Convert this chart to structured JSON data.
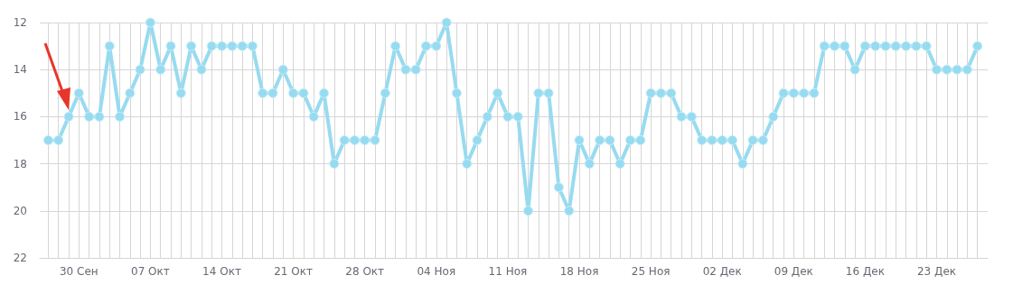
{
  "chart_data": {
    "type": "line",
    "x": [
      "--09-27",
      "--09-28",
      "--09-29",
      "--09-30",
      "--10-01",
      "--10-02",
      "--10-03",
      "--10-04",
      "--10-05",
      "--10-06",
      "--10-07",
      "--10-08",
      "--10-09",
      "--10-10",
      "--10-11",
      "--10-12",
      "--10-13",
      "--10-14",
      "--10-15",
      "--10-16",
      "--10-17",
      "--10-18",
      "--10-19",
      "--10-20",
      "--10-21",
      "--10-22",
      "--10-23",
      "--10-24",
      "--10-25",
      "--10-26",
      "--10-27",
      "--10-28",
      "--10-29",
      "--10-30",
      "--10-31",
      "--11-01",
      "--11-02",
      "--11-03",
      "--11-04",
      "--11-05",
      "--11-06",
      "--11-07",
      "--11-08",
      "--11-09",
      "--11-10",
      "--11-11",
      "--11-12",
      "--11-13",
      "--11-14",
      "--11-15",
      "--11-16",
      "--11-17",
      "--11-18",
      "--11-19",
      "--11-20",
      "--11-21",
      "--11-22",
      "--11-23",
      "--11-24",
      "--11-25",
      "--11-26",
      "--11-27",
      "--11-28",
      "--11-29",
      "--11-30",
      "--12-01",
      "--12-02",
      "--12-03",
      "--12-04",
      "--12-05",
      "--12-06",
      "--12-07",
      "--12-08",
      "--12-09",
      "--12-10",
      "--12-11",
      "--12-12",
      "--12-13",
      "--12-14",
      "--12-15",
      "--12-16",
      "--12-17",
      "--12-18",
      "--12-19",
      "--12-20",
      "--12-21",
      "--12-22",
      "--12-23",
      "--12-24",
      "--12-25",
      "--12-26",
      "--12-27"
    ],
    "series": [
      {
        "color": "#97dbf0",
        "values": [
          17,
          17,
          16,
          15,
          16,
          16,
          13,
          16,
          15,
          14,
          12,
          14,
          13,
          15,
          13,
          14,
          13,
          13,
          13,
          13,
          13,
          15,
          15,
          14,
          15,
          15,
          16,
          15,
          18,
          17,
          17,
          17,
          17,
          15,
          13,
          14,
          14,
          13,
          13,
          12,
          15,
          18,
          17,
          16,
          15,
          16,
          16,
          20,
          15,
          15,
          19,
          20,
          17,
          18,
          17,
          17,
          18,
          17,
          17,
          15,
          15,
          15,
          16,
          16,
          17,
          17,
          17,
          17,
          18,
          17,
          17,
          16,
          15,
          15,
          15,
          15,
          13,
          13,
          13,
          14,
          13,
          13,
          13,
          13,
          13,
          13,
          13,
          14,
          14,
          14,
          14,
          13
        ]
      }
    ],
    "xlim": [
      "--09-26T04:00",
      "--12-28"
    ],
    "xticks": [
      {
        "value": "--09-27",
        "label": null
      },
      {
        "value": "--09-28",
        "label": null
      },
      {
        "value": "--09-29",
        "label": null
      },
      {
        "value": "--09-30",
        "label": "30 Сен"
      },
      {
        "value": "--10-01",
        "label": null
      },
      {
        "value": "--10-02",
        "label": null
      },
      {
        "value": "--10-03",
        "label": null
      },
      {
        "value": "--10-04",
        "label": null
      },
      {
        "value": "--10-05",
        "label": null
      },
      {
        "value": "--10-06",
        "label": null
      },
      {
        "value": "--10-07",
        "label": "07 Окт"
      },
      {
        "value": "--10-08",
        "label": null
      },
      {
        "value": "--10-09",
        "label": null
      },
      {
        "value": "--10-10",
        "label": null
      },
      {
        "value": "--10-11",
        "label": null
      },
      {
        "value": "--10-12",
        "label": null
      },
      {
        "value": "--10-13",
        "label": null
      },
      {
        "value": "--10-14",
        "label": "14 Окт"
      },
      {
        "value": "--10-15",
        "label": null
      },
      {
        "value": "--10-16",
        "label": null
      },
      {
        "value": "--10-17",
        "label": null
      },
      {
        "value": "--10-18",
        "label": null
      },
      {
        "value": "--10-19",
        "label": null
      },
      {
        "value": "--10-20",
        "label": null
      },
      {
        "value": "--10-21",
        "label": "21 Окт"
      },
      {
        "value": "--10-22",
        "label": null
      },
      {
        "value": "--10-23",
        "label": null
      },
      {
        "value": "--10-24",
        "label": null
      },
      {
        "value": "--10-25",
        "label": null
      },
      {
        "value": "--10-26",
        "label": null
      },
      {
        "value": "--10-27",
        "label": null
      },
      {
        "value": "--10-28",
        "label": "28 Окт"
      },
      {
        "value": "--10-29",
        "label": null
      },
      {
        "value": "--10-30",
        "label": null
      },
      {
        "value": "--10-31",
        "label": null
      },
      {
        "value": "--11-01",
        "label": null
      },
      {
        "value": "--11-02",
        "label": null
      },
      {
        "value": "--11-03",
        "label": null
      },
      {
        "value": "--11-04",
        "label": "04 Ноя"
      },
      {
        "value": "--11-05",
        "label": null
      },
      {
        "value": "--11-06",
        "label": null
      },
      {
        "value": "--11-07",
        "label": null
      },
      {
        "value": "--11-08",
        "label": null
      },
      {
        "value": "--11-09",
        "label": null
      },
      {
        "value": "--11-10",
        "label": null
      },
      {
        "value": "--11-11",
        "label": "11 Ноя"
      },
      {
        "value": "--11-12",
        "label": null
      },
      {
        "value": "--11-13",
        "label": null
      },
      {
        "value": "--11-14",
        "label": null
      },
      {
        "value": "--11-15",
        "label": null
      },
      {
        "value": "--11-16",
        "label": null
      },
      {
        "value": "--11-17",
        "label": null
      },
      {
        "value": "--11-18",
        "label": "18 Ноя"
      },
      {
        "value": "--11-19",
        "label": null
      },
      {
        "value": "--11-20",
        "label": null
      },
      {
        "value": "--11-21",
        "label": null
      },
      {
        "value": "--11-22",
        "label": null
      },
      {
        "value": "--11-23",
        "label": null
      },
      {
        "value": "--11-24",
        "label": null
      },
      {
        "value": "--11-25",
        "label": "25 Ноя"
      },
      {
        "value": "--11-26",
        "label": null
      },
      {
        "value": "--11-27",
        "label": null
      },
      {
        "value": "--11-28",
        "label": null
      },
      {
        "value": "--11-29",
        "label": null
      },
      {
        "value": "--11-30",
        "label": null
      },
      {
        "value": "--12-01",
        "label": null
      },
      {
        "value": "--12-02",
        "label": "02 Дек"
      },
      {
        "value": "--12-03",
        "label": null
      },
      {
        "value": "--12-04",
        "label": null
      },
      {
        "value": "--12-05",
        "label": null
      },
      {
        "value": "--12-06",
        "label": null
      },
      {
        "value": "--12-07",
        "label": null
      },
      {
        "value": "--12-08",
        "label": null
      },
      {
        "value": "--12-09",
        "label": "09 Дек"
      },
      {
        "value": "--12-10",
        "label": null
      },
      {
        "value": "--12-11",
        "label": null
      },
      {
        "value": "--12-12",
        "label": null
      },
      {
        "value": "--12-13",
        "label": null
      },
      {
        "value": "--12-14",
        "label": null
      },
      {
        "value": "--12-15",
        "label": null
      },
      {
        "value": "--12-16",
        "label": "16 Дек"
      },
      {
        "value": "--12-17",
        "label": null
      },
      {
        "value": "--12-18",
        "label": null
      },
      {
        "value": "--12-19",
        "label": null
      },
      {
        "value": "--12-20",
        "label": null
      },
      {
        "value": "--12-21",
        "label": null
      },
      {
        "value": "--12-22",
        "label": null
      },
      {
        "value": "--12-23",
        "label": "23 Дек"
      },
      {
        "value": "--12-24",
        "label": null
      },
      {
        "value": "--12-25",
        "label": null
      },
      {
        "value": "--12-26",
        "label": null
      },
      {
        "value": "--12-27",
        "label": null
      }
    ],
    "ylim": [
      22,
      12
    ],
    "yticks": [
      12,
      14,
      16,
      18,
      20,
      22
    ],
    "grid": true,
    "marker": "circle",
    "line_style": "solid"
  }
}
